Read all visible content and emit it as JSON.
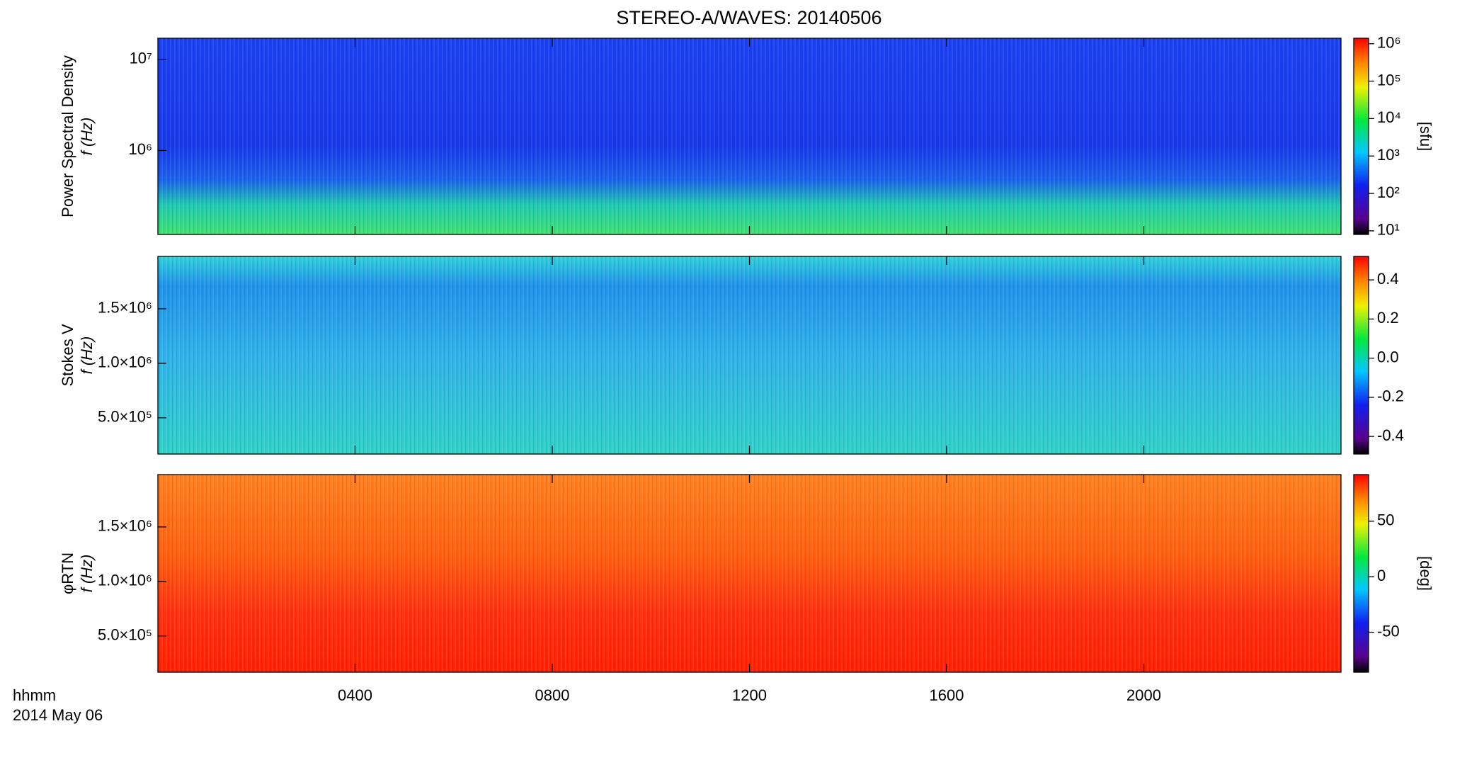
{
  "chart_data": [
    {
      "type": "spectrogram",
      "title": "STEREO-A/WAVES: 20140506",
      "ylabel": "Power Spectral Density",
      "ylabel2": "f (Hz)",
      "xlim": [
        0,
        24
      ],
      "ylim": [
        120000,
        17000000
      ],
      "log_y": true,
      "yticks": [
        {
          "value": 1000000,
          "label": "10⁶"
        },
        {
          "value": 10000000,
          "label": "10⁷"
        }
      ],
      "colorbar": {
        "label": "[sfu]",
        "lim": [
          8,
          1400000
        ],
        "log": true,
        "ticks": [
          {
            "value": 10,
            "label": "10¹"
          },
          {
            "value": 100,
            "label": "10²"
          },
          {
            "value": 1000,
            "label": "10³"
          },
          {
            "value": 10000,
            "label": "10⁴"
          },
          {
            "value": 100000,
            "label": "10⁵"
          },
          {
            "value": 1000000,
            "label": "10⁶"
          }
        ]
      }
    },
    {
      "type": "spectrogram",
      "ylabel": "Stokes V",
      "ylabel2": "f (Hz)",
      "xlim": [
        0,
        24
      ],
      "ylim": [
        167000,
        1980000
      ],
      "log_y": false,
      "yticks": [
        {
          "value": 500000,
          "label": "5.0×10⁵"
        },
        {
          "value": 1000000,
          "label": "1.0×10⁶"
        },
        {
          "value": 1500000,
          "label": "1.5×10⁶"
        }
      ],
      "colorbar": {
        "label": "",
        "lim": [
          -0.49,
          0.52
        ],
        "log": false,
        "ticks": [
          -0.4,
          -0.2,
          {
            "value": 0,
            "label": "0.0"
          },
          0.2,
          0.4
        ]
      }
    },
    {
      "type": "spectrogram",
      "ylabel": "φRTN",
      "ylabel2": "f (Hz)",
      "xlim": [
        0,
        24
      ],
      "ylim": [
        167000,
        1980000
      ],
      "log_y": false,
      "yticks": [
        {
          "value": 500000,
          "label": "5.0×10⁵"
        },
        {
          "value": 1000000,
          "label": "1.0×10⁶"
        },
        {
          "value": 1500000,
          "label": "1.5×10⁶"
        }
      ],
      "colorbar": {
        "label": "[deg]",
        "lim": [
          -86,
          92
        ],
        "log": false,
        "ticks": [
          -50,
          0,
          50
        ]
      },
      "xlabel": "hhmm",
      "date": "2014 May 06",
      "xticks": [
        {
          "value": 4,
          "label": "0400"
        },
        {
          "value": 8,
          "label": "0800"
        },
        {
          "value": 12,
          "label": "1200"
        },
        {
          "value": 16,
          "label": "1600"
        },
        {
          "value": 20,
          "label": "2000"
        }
      ]
    }
  ]
}
